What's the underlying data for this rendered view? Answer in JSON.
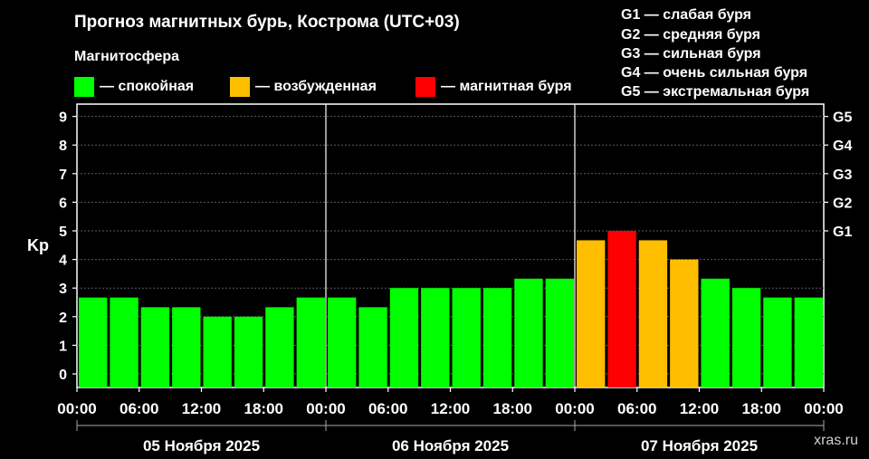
{
  "title": "Прогноз магнитных бурь, Кострома (UTC+03)",
  "subtitle": "Магнитосфера",
  "legend": [
    {
      "label": "— спокойная",
      "color": "#00ff00"
    },
    {
      "label": "— возбужденная",
      "color": "#ffbf00"
    },
    {
      "label": "— магнитная буря",
      "color": "#ff0000"
    }
  ],
  "g_scale": [
    "G1 — слабая буря",
    "G2 — средняя буря",
    "G3 — сильная буря",
    "G4 — очень сильная буря",
    "G5 — экстремальная буря"
  ],
  "watermark": "xras.ru",
  "chart_data": {
    "type": "bar",
    "ylabel": "Kp",
    "ylim": [
      0,
      9
    ],
    "y_ticks": [
      "0",
      "1",
      "2",
      "3",
      "4",
      "5",
      "6",
      "7",
      "8",
      "9"
    ],
    "right_ticks": [
      {
        "value": 5,
        "label": "G1"
      },
      {
        "value": 6,
        "label": "G2"
      },
      {
        "value": 7,
        "label": "G3"
      },
      {
        "value": 8,
        "label": "G4"
      },
      {
        "value": 9,
        "label": "G5"
      }
    ],
    "x_tick_labels": [
      "00:00",
      "06:00",
      "12:00",
      "18:00",
      "00:00",
      "06:00",
      "12:00",
      "18:00",
      "00:00",
      "06:00",
      "12:00",
      "18:00",
      "00:00"
    ],
    "days": [
      "05 Ноября 2025",
      "06 Ноября 2025",
      "07 Ноября 2025"
    ],
    "interval_hours": 3,
    "values": [
      2.67,
      2.67,
      2.33,
      2.33,
      2.0,
      2.0,
      2.33,
      2.67,
      2.67,
      2.33,
      3.0,
      3.0,
      3.0,
      3.0,
      3.33,
      3.33,
      4.67,
      5.0,
      4.67,
      4.0,
      3.33,
      3.0,
      2.67,
      2.67
    ],
    "levels": [
      "quiet",
      "quiet",
      "quiet",
      "quiet",
      "quiet",
      "quiet",
      "quiet",
      "quiet",
      "quiet",
      "quiet",
      "quiet",
      "quiet",
      "quiet",
      "quiet",
      "quiet",
      "quiet",
      "active",
      "storm",
      "active",
      "active",
      "quiet",
      "quiet",
      "quiet",
      "quiet"
    ],
    "colors": {
      "quiet": "#00ff00",
      "active": "#ffbf00",
      "storm": "#ff0000"
    },
    "grid": true
  }
}
